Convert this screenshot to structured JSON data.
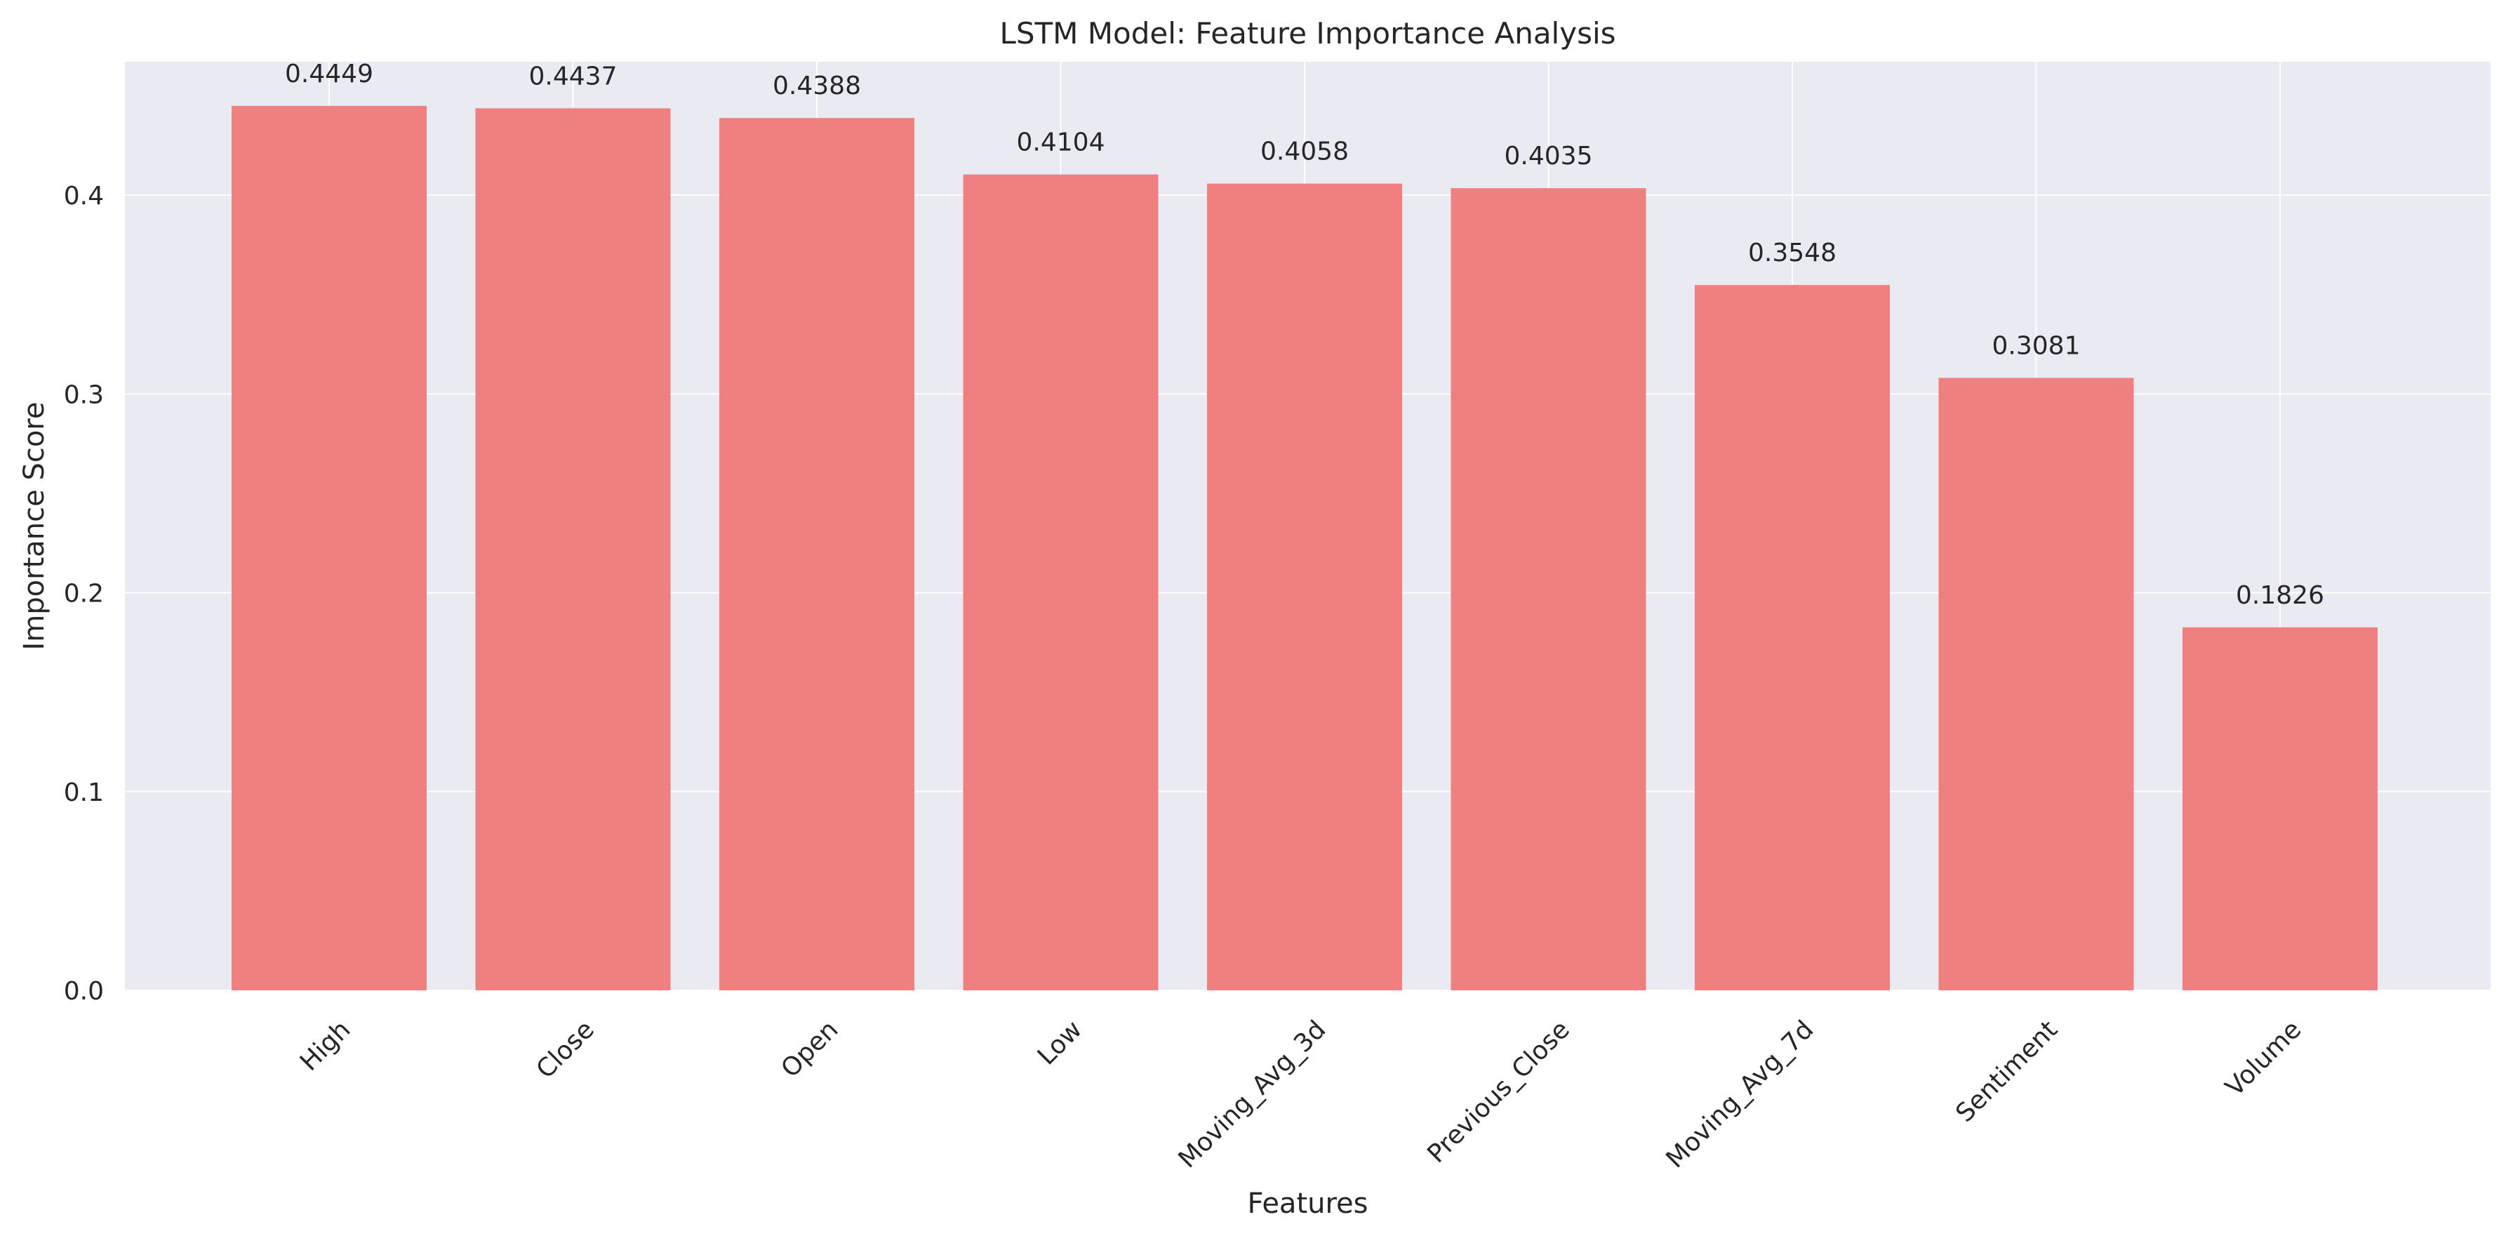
{
  "chart_data": {
    "type": "bar",
    "title": "LSTM Model: Feature Importance Analysis",
    "xlabel": "Features",
    "ylabel": "Importance Score",
    "categories": [
      "High",
      "Close",
      "Open",
      "Low",
      "Moving_Avg_3d",
      "Previous_Close",
      "Moving_Avg_7d",
      "Sentiment",
      "Volume"
    ],
    "values": [
      0.4449,
      0.4437,
      0.4388,
      0.4104,
      0.4058,
      0.4035,
      0.3548,
      0.3081,
      0.1826
    ],
    "data_labels": [
      "0.4449",
      "0.4437",
      "0.4388",
      "0.4104",
      "0.4058",
      "0.4035",
      "0.3548",
      "0.3081",
      "0.1826"
    ],
    "ylim": [
      0,
      0.4671
    ],
    "yticks": [
      0.0,
      0.1,
      0.2,
      0.3,
      0.4
    ],
    "ytick_labels": [
      "0.0",
      "0.1",
      "0.2",
      "0.3",
      "0.4"
    ],
    "grid": true,
    "legend": "none",
    "colors": {
      "bar": "#f08080",
      "plot_background": "#eaeaf2",
      "grid": "#ffffff",
      "text": "#262626"
    }
  }
}
